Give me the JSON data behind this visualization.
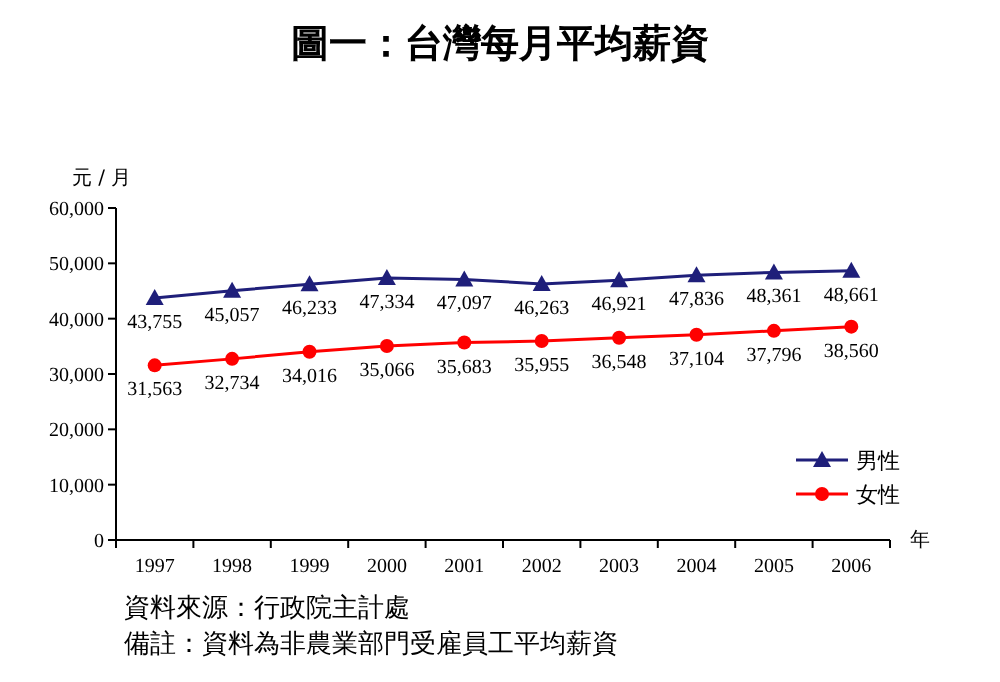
{
  "chart_data": {
    "type": "line",
    "title": "圖一：台灣每月平均薪資",
    "ylabel": "元 / 月",
    "xlabel": "年",
    "categories": [
      "1997",
      "1998",
      "1999",
      "2000",
      "2001",
      "2002",
      "2003",
      "2004",
      "2005",
      "2006"
    ],
    "series": [
      {
        "name": "男性",
        "color": "#1f1f7a",
        "marker": "triangle",
        "values": [
          43755,
          45057,
          46233,
          47334,
          47097,
          46263,
          46921,
          47836,
          48361,
          48661
        ],
        "value_labels": [
          "43,755",
          "45,057",
          "46,233",
          "47,334",
          "47,097",
          "46,263",
          "46,921",
          "47,836",
          "48,361",
          "48,661"
        ]
      },
      {
        "name": "女性",
        "color": "#ff0000",
        "marker": "circle",
        "values": [
          31563,
          32734,
          34016,
          35066,
          35683,
          35955,
          36548,
          37104,
          37796,
          38560
        ],
        "value_labels": [
          "31,563",
          "32,734",
          "34,016",
          "35,066",
          "35,683",
          "35,955",
          "36,548",
          "37,104",
          "37,796",
          "38,560"
        ]
      }
    ],
    "ylim": [
      0,
      60000
    ],
    "yticks": [
      0,
      {
        "value": 10000,
        "label": "10,000"
      },
      {
        "value": 20000,
        "label": "20,000"
      },
      {
        "value": 30000,
        "label": "30,000"
      },
      {
        "value": 40000,
        "label": "40,000"
      },
      {
        "value": 50000,
        "label": "50,000"
      },
      {
        "value": 60000,
        "label": "60,000"
      }
    ],
    "grid": false,
    "legend": "bottom right",
    "line_style": "solid",
    "annotations": [
      "資料來源：行政院主計處",
      "備註：資料為非農業部門受雇員工平均薪資"
    ]
  }
}
